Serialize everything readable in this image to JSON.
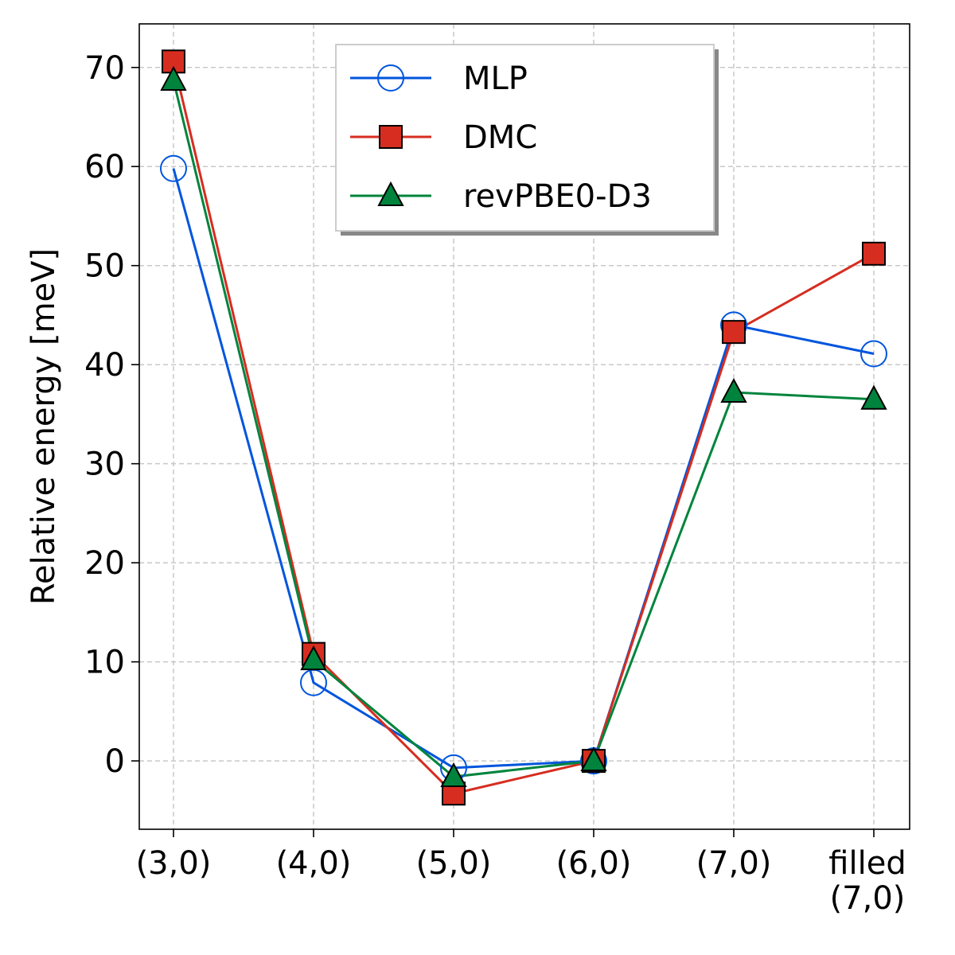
{
  "chart_data": {
    "type": "line",
    "y_label": "Relative energy [meV]",
    "categories": [
      "(3,0)",
      "(4,0)",
      "(5,0)",
      "(6,0)",
      "(7,0)",
      "filled\n(7,0)"
    ],
    "series": [
      {
        "name": "MLP",
        "color": "#0055dd",
        "marker": "circle-open",
        "values": [
          59.8,
          7.9,
          -0.7,
          0,
          44.0,
          41.1
        ]
      },
      {
        "name": "DMC",
        "color": "#d62d20",
        "marker": "square",
        "values": [
          70.6,
          10.8,
          -3.3,
          0,
          43.3,
          51.2
        ]
      },
      {
        "name": "revPBE0-D3",
        "color": "#00843d",
        "marker": "triangle",
        "values": [
          68.7,
          10.2,
          -1.6,
          0,
          37.2,
          36.5
        ]
      }
    ],
    "ylim": [
      -6.9,
      74.4
    ],
    "yticks": [
      0,
      10,
      20,
      30,
      40,
      50,
      60,
      70
    ],
    "grid": true,
    "legend": "upper center"
  }
}
